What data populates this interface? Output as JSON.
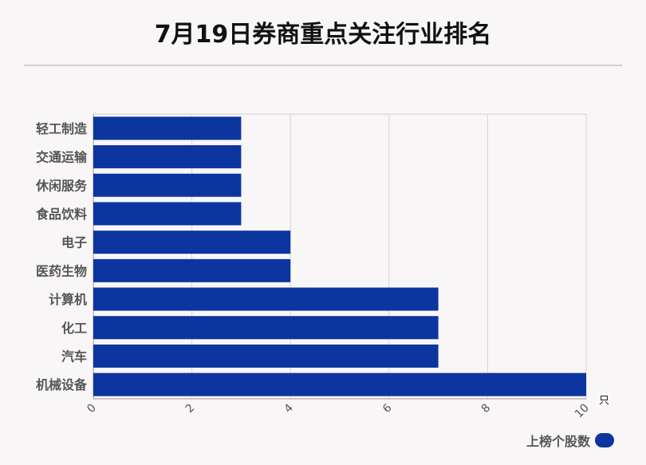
{
  "title": "7月19日券商重点关注行业排名",
  "chart_data": {
    "type": "bar",
    "orientation": "horizontal",
    "title": "7月19日券商重点关注行业排名",
    "categories": [
      "轻工制造",
      "交通运输",
      "休闲服务",
      "食品饮料",
      "电子",
      "医药生物",
      "计算机",
      "化工",
      "汽车",
      "机械设备"
    ],
    "series": [
      {
        "name": "上榜个股数",
        "values": [
          3,
          3,
          3,
          3,
          4,
          4,
          7,
          7,
          7,
          10
        ]
      }
    ],
    "xlim": [
      0,
      10
    ],
    "x_ticks": [
      "0",
      "2",
      "4",
      "6",
      "8",
      "10"
    ],
    "x_unit": "只",
    "grid": true,
    "legend": "bottom-right",
    "bar_color": "#0c35a0"
  }
}
